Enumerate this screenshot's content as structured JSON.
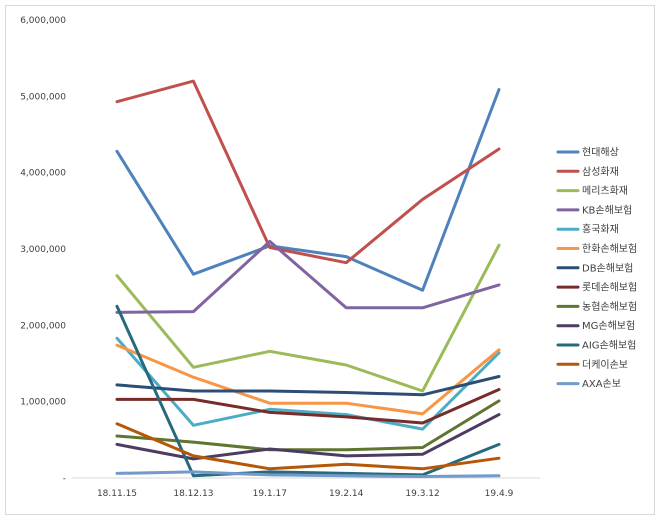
{
  "chart_data": {
    "type": "line",
    "title": "",
    "xlabel": "",
    "ylabel": "",
    "categories": [
      "18.11.15",
      "18.12.13",
      "19.1.17",
      "19.2.14",
      "19.3.12",
      "19.4.9"
    ],
    "ylim": [
      0,
      6000000
    ],
    "yticks": [
      0,
      1000000,
      2000000,
      3000000,
      4000000,
      5000000,
      6000000
    ],
    "ytick_labels": [
      "-",
      "1,000,000",
      "2,000,000",
      "3,000,000",
      "4,000,000",
      "5,000,000",
      "6,000,000"
    ],
    "grid": false,
    "legend_position": "right",
    "series": [
      {
        "name": "현대해상",
        "color": "#4f81bd",
        "values": [
          4280000,
          2670000,
          3040000,
          2900000,
          2460000,
          5090000
        ]
      },
      {
        "name": "삼성화재",
        "color": "#c0504d",
        "values": [
          4930000,
          5200000,
          3020000,
          2820000,
          3650000,
          4310000
        ]
      },
      {
        "name": "메리츠화재",
        "color": "#9bbb59",
        "values": [
          2650000,
          1450000,
          1660000,
          1480000,
          1140000,
          3050000
        ]
      },
      {
        "name": "KB손해보험",
        "color": "#8064a2",
        "values": [
          2170000,
          2180000,
          3100000,
          2230000,
          2230000,
          2530000
        ]
      },
      {
        "name": "흥국화재",
        "color": "#4bacc6",
        "values": [
          1830000,
          690000,
          900000,
          830000,
          640000,
          1640000
        ]
      },
      {
        "name": "한화손해보험",
        "color": "#f79646",
        "values": [
          1740000,
          1320000,
          980000,
          980000,
          840000,
          1680000
        ]
      },
      {
        "name": "DB손해보험",
        "color": "#2c4d75",
        "values": [
          1220000,
          1140000,
          1140000,
          1120000,
          1090000,
          1330000
        ]
      },
      {
        "name": "롯데손해보험",
        "color": "#772c2a",
        "values": [
          1030000,
          1030000,
          860000,
          800000,
          720000,
          1160000
        ]
      },
      {
        "name": "농협손해보험",
        "color": "#5f7530",
        "values": [
          550000,
          470000,
          370000,
          370000,
          400000,
          1010000
        ]
      },
      {
        "name": "MG손해보험",
        "color": "#4d3b62",
        "values": [
          440000,
          250000,
          380000,
          290000,
          310000,
          830000
        ]
      },
      {
        "name": "AIG손해보험",
        "color": "#276a7c",
        "values": [
          2250000,
          30000,
          80000,
          60000,
          40000,
          440000
        ]
      },
      {
        "name": "더케이손보",
        "color": "#b65708",
        "values": [
          710000,
          290000,
          120000,
          180000,
          120000,
          260000
        ]
      },
      {
        "name": "AXA손보",
        "color": "#729aca",
        "values": [
          60000,
          80000,
          40000,
          30000,
          20000,
          30000
        ]
      }
    ]
  }
}
